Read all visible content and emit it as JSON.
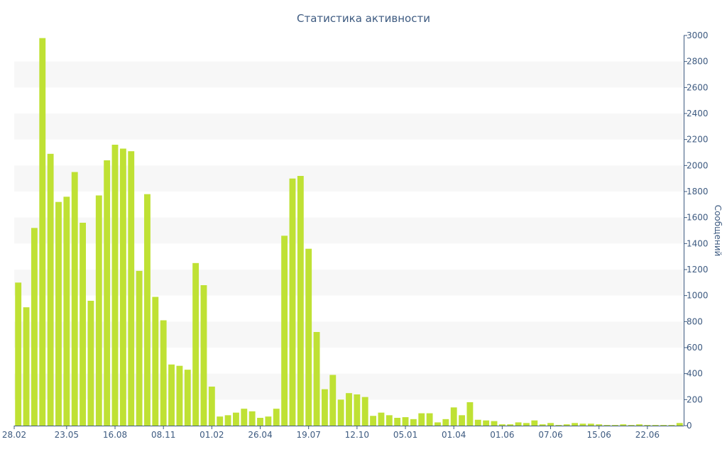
{
  "chart_data": {
    "type": "bar",
    "title": "Статистика активности",
    "ylabel": "Сообщений",
    "y_axis_position": "right",
    "ylim": [
      0,
      3000
    ],
    "y_ticks": [
      0,
      200,
      400,
      600,
      800,
      1000,
      1200,
      1400,
      1600,
      1800,
      2000,
      2200,
      2400,
      2600,
      2800,
      3000
    ],
    "x_tick_labels": [
      {
        "index": 0,
        "label": "28.02"
      },
      {
        "index": 6,
        "label": "23.05"
      },
      {
        "index": 12,
        "label": "16.08"
      },
      {
        "index": 18,
        "label": "08.11"
      },
      {
        "index": 24,
        "label": "01.02"
      },
      {
        "index": 30,
        "label": "26.04"
      },
      {
        "index": 36,
        "label": "19.07"
      },
      {
        "index": 42,
        "label": "12.10"
      },
      {
        "index": 48,
        "label": "05.01"
      },
      {
        "index": 54,
        "label": "01.04"
      },
      {
        "index": 60,
        "label": "01.06"
      },
      {
        "index": 66,
        "label": "07.06"
      },
      {
        "index": 72,
        "label": "15.06"
      },
      {
        "index": 78,
        "label": "22.06"
      }
    ],
    "values": [
      1100,
      910,
      1520,
      2980,
      2090,
      1720,
      1760,
      1950,
      1560,
      960,
      1770,
      2040,
      2160,
      2130,
      2110,
      1190,
      1780,
      990,
      810,
      470,
      460,
      430,
      1250,
      1080,
      300,
      70,
      80,
      100,
      130,
      110,
      60,
      70,
      130,
      1460,
      1900,
      1920,
      1360,
      720,
      280,
      390,
      200,
      250,
      240,
      220,
      75,
      100,
      80,
      60,
      65,
      50,
      95,
      95,
      25,
      50,
      140,
      80,
      180,
      45,
      40,
      35,
      10,
      10,
      25,
      20,
      40,
      10,
      20,
      5,
      10,
      20,
      15,
      15,
      10,
      5,
      5,
      10,
      5,
      10,
      5,
      5,
      5,
      5,
      20
    ],
    "bar_color": "#bfe134",
    "band_color": "#f7f7f7",
    "text_color": "#3d5a80"
  }
}
